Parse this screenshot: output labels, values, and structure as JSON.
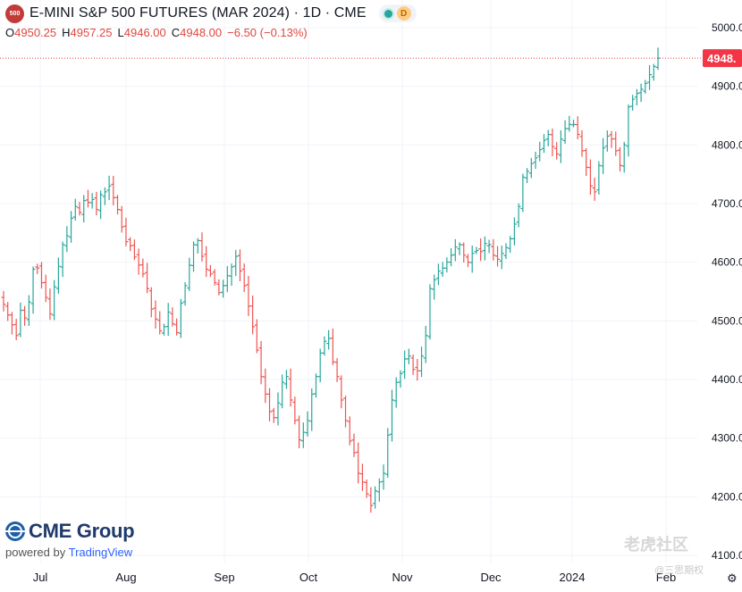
{
  "header": {
    "badge": "500",
    "title": "E-MINI S&P 500 FUTURES (MAR 2024) · 1D · CME",
    "d_label": "D"
  },
  "ohlc": {
    "o_label": "O",
    "o_value": "4950.25",
    "h_label": "H",
    "h_value": "4957.25",
    "l_label": "L",
    "l_value": "4946.00",
    "c_label": "C",
    "c_value": "4948.00",
    "change": "−6.50 (−0.13%)"
  },
  "logo": {
    "name": "CME Group",
    "powered_by": "powered by",
    "platform": "TradingView"
  },
  "watermark": {
    "main": "老虎社区",
    "sub": "@三思期权"
  },
  "colors": {
    "up": "#26a69a",
    "down": "#ef5350",
    "grid": "#f0f3fa",
    "price_tag": "#f23645"
  },
  "chart_data": {
    "type": "ohlc",
    "title": "E-MINI S&P 500 FUTURES (MAR 2024) · 1D · CME",
    "ylim": [
      4100,
      5000
    ],
    "y_ticks": [
      "5000.00",
      "4900.00",
      "4800.00",
      "4700.00",
      "4600.00",
      "4500.00",
      "4400.00",
      "4300.00",
      "4200.00",
      "4100.00"
    ],
    "x_ticks": [
      "Jul",
      "Aug",
      "Sep",
      "Oct",
      "Nov",
      "Dec",
      "2024",
      "Feb"
    ],
    "last_price": 4948,
    "last_price_label": "4948.",
    "grid": true,
    "series": [
      {
        "name": "E-MINI S&P 500 FUTURES",
        "closes": [
          4528,
          4510,
          4493,
          4475,
          4518,
          4505,
          4532,
          4588,
          4590,
          4565,
          4540,
          4512,
          4558,
          4593,
          4630,
          4645,
          4675,
          4695,
          4685,
          4705,
          4702,
          4707,
          4690,
          4715,
          4720,
          4730,
          4710,
          4690,
          4660,
          4635,
          4628,
          4609,
          4595,
          4580,
          4555,
          4520,
          4503,
          4483,
          4490,
          4515,
          4495,
          4480,
          4530,
          4560,
          4595,
          4630,
          4637,
          4610,
          4588,
          4580,
          4565,
          4548,
          4560,
          4577,
          4592,
          4610,
          4585,
          4560,
          4525,
          4490,
          4450,
          4405,
          4375,
          4345,
          4335,
          4360,
          4395,
          4405,
          4365,
          4330,
          4297,
          4310,
          4330,
          4375,
          4405,
          4445,
          4465,
          4470,
          4430,
          4405,
          4365,
          4330,
          4295,
          4275,
          4240,
          4225,
          4205,
          4185,
          4210,
          4225,
          4240,
          4305,
          4365,
          4395,
          4410,
          4435,
          4440,
          4417,
          4415,
          4440,
          4475,
          4555,
          4570,
          4585,
          4590,
          4600,
          4612,
          4626,
          4630,
          4612,
          4600,
          4615,
          4620,
          4618,
          4632,
          4630,
          4612,
          4605,
          4615,
          4625,
          4640,
          4665,
          4695,
          4745,
          4755,
          4768,
          4778,
          4792,
          4808,
          4818,
          4797,
          4785,
          4810,
          4828,
          4835,
          4835,
          4818,
          4790,
          4762,
          4730,
          4720,
          4765,
          4795,
          4815,
          4810,
          4790,
          4765,
          4800,
          4865,
          4878,
          4888,
          4895,
          4905,
          4920,
          4934,
          4948
        ]
      }
    ]
  }
}
